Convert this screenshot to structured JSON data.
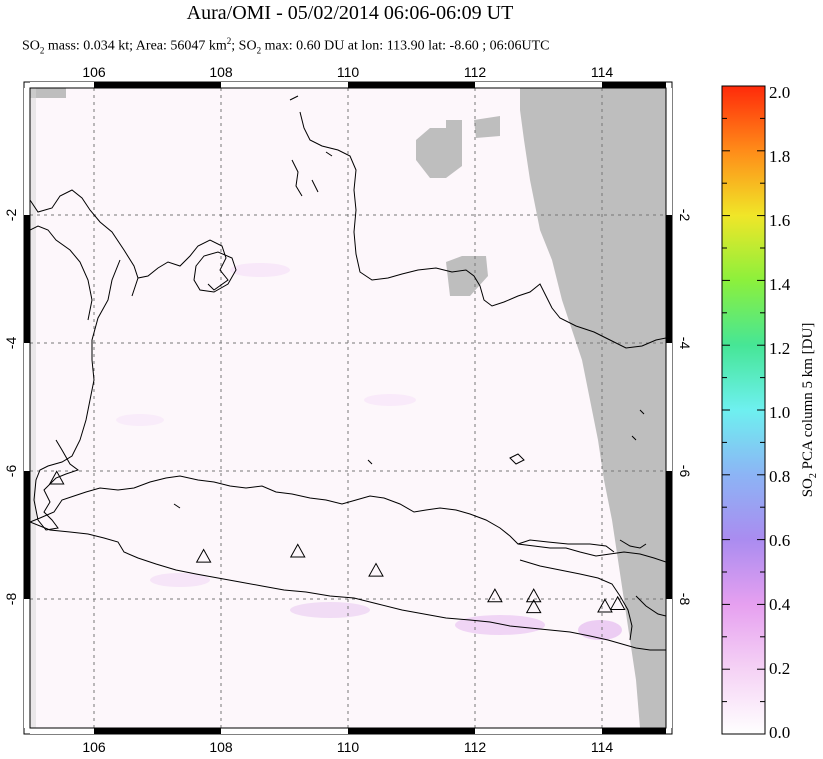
{
  "header": {
    "title": "Aura/OMI - 05/02/2014 06:06-06:09 UT",
    "subtitle_parts": {
      "so2_prefix": "SO",
      "so2_sub": "2",
      "mass_text": " mass: 0.034 kt; Area: 56047 km",
      "area_sup": "2",
      "max_text": "; SO",
      "max_sub": "2",
      "max_rest": " max: 0.60 DU at lon: 113.90 lat: -8.60 ; 06:06UTC"
    }
  },
  "map": {
    "lon_range": [
      105.0,
      115.0
    ],
    "lat_range": [
      -10.0,
      0.0
    ],
    "lon_ticks": [
      "106",
      "108",
      "110",
      "112",
      "114"
    ],
    "lat_ticks_left": [
      "-2",
      "-4",
      "-6",
      "-8"
    ],
    "lat_ticks_right": [
      "-2",
      "-4",
      "-6",
      "-8"
    ],
    "gridlines": "dashed",
    "missing_data_color": "#bebebe",
    "volcanoes": [
      {
        "lon": 105.42,
        "lat": -6.1
      },
      {
        "lon": 107.73,
        "lat": -7.32
      },
      {
        "lon": 109.21,
        "lat": -7.24
      },
      {
        "lon": 110.44,
        "lat": -7.54
      },
      {
        "lon": 112.31,
        "lat": -7.94
      },
      {
        "lon": 112.92,
        "lat": -7.94
      },
      {
        "lon": 112.92,
        "lat": -8.11
      },
      {
        "lon": 114.04,
        "lat": -8.1
      },
      {
        "lon": 114.24,
        "lat": -8.06
      }
    ]
  },
  "colorbar": {
    "title": "SO2 PCA column 5 km [DU]",
    "title_prefix": "SO",
    "title_sub": "2",
    "title_rest": " PCA column 5 km [DU]",
    "min": 0.0,
    "max": 2.0,
    "tick_labels": [
      "2.0",
      "1.8",
      "1.6",
      "1.4",
      "1.2",
      "1.0",
      "0.8",
      "0.6",
      "0.4",
      "0.2",
      "0.0"
    ],
    "gradient_colors": [
      "#ff2a0a",
      "#ff8c19",
      "#f0e628",
      "#8cf03c",
      "#46e696",
      "#6ef0f0",
      "#8cb4f5",
      "#aa8cf0",
      "#e6a0f0",
      "#f5d2f5",
      "#ffffff"
    ]
  }
}
